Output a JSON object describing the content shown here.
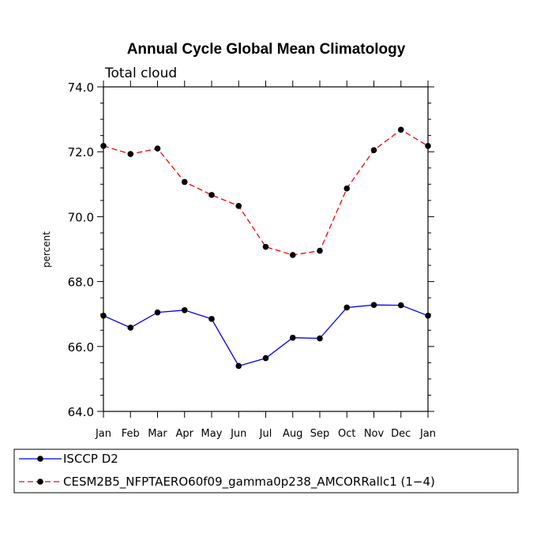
{
  "chart_data": {
    "type": "line",
    "title": "Annual Cycle Global Mean Climatology",
    "subtitle": "Total cloud",
    "xlabel": "",
    "ylabel": "percent",
    "ylim": [
      64.0,
      74.0
    ],
    "y_ticks": [
      "64.0",
      "66.0",
      "68.0",
      "70.0",
      "72.0",
      "74.0"
    ],
    "y_tick_values": [
      64,
      66,
      68,
      70,
      72,
      74
    ],
    "categories": [
      "Jan",
      "Feb",
      "Mar",
      "Apr",
      "May",
      "Jun",
      "Jul",
      "Aug",
      "Sep",
      "Oct",
      "Nov",
      "Dec",
      "Jan"
    ],
    "series": [
      {
        "name": "ISCCP D2",
        "color": "#0000ff",
        "dash": "solid",
        "values": [
          66.95,
          66.58,
          67.05,
          67.12,
          66.85,
          65.4,
          65.64,
          66.27,
          66.25,
          67.2,
          67.28,
          67.27,
          66.95
        ]
      },
      {
        "name": "CESM2B5_NFPTAERO60f09_gamma0p238_AMCORRallc1 (1−4)",
        "color": "#ff0000",
        "dash": "dashed",
        "values": [
          72.18,
          71.93,
          72.1,
          71.07,
          70.67,
          70.33,
          69.07,
          68.82,
          68.95,
          70.87,
          72.05,
          72.68,
          72.18
        ]
      }
    ],
    "legend_position": "bottom"
  }
}
